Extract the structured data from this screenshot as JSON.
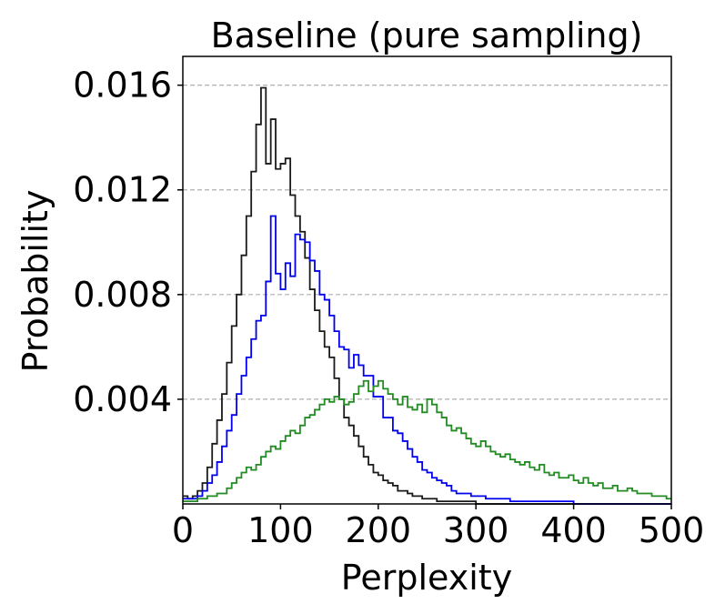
{
  "chart_data": {
    "type": "step-histogram",
    "title": "Baseline (pure sampling)",
    "xlabel": "Perplexity",
    "ylabel": "Probability",
    "xlim": [
      0,
      500
    ],
    "ylim": [
      0,
      0.0171
    ],
    "xticks": [
      0,
      100,
      200,
      300,
      400,
      500
    ],
    "xtick_labels": [
      "0",
      "100",
      "200",
      "300",
      "400",
      "500"
    ],
    "yticks": [
      0.004,
      0.008,
      0.012,
      0.016
    ],
    "ytick_labels": [
      "0.004",
      "0.008",
      "0.012",
      "0.016"
    ],
    "grid": "y-dashed",
    "bin_width": 5,
    "series": [
      {
        "color": "#1a1a1a",
        "values": [
          0.0003,
          0.0002,
          0.0003,
          0.0005,
          0.0008,
          0.0014,
          0.0023,
          0.0032,
          0.0042,
          0.0054,
          0.0068,
          0.008,
          0.0095,
          0.011,
          0.0127,
          0.0145,
          0.0159,
          0.013,
          0.0147,
          0.0128,
          0.013,
          0.0132,
          0.0118,
          0.011,
          0.0104,
          0.0094,
          0.0082,
          0.0074,
          0.0066,
          0.006,
          0.0056,
          0.0048,
          0.004,
          0.0033,
          0.003,
          0.0026,
          0.0022,
          0.0018,
          0.0015,
          0.0012,
          0.0011,
          0.0009,
          0.0008,
          0.0007,
          0.0005,
          0.0005,
          0.0004,
          0.0003,
          0.0003,
          0.0002,
          0.0002,
          0.0002,
          0.0001,
          0.0001,
          0.0001,
          0.0001,
          0.0001,
          0.0001,
          0.0001,
          0.0001,
          0.0,
          0.0,
          0.0,
          0.0,
          0.0,
          0.0,
          0.0,
          0.0,
          0.0,
          0.0,
          0.0,
          0.0,
          0.0,
          0.0,
          0.0,
          0.0,
          0.0,
          0.0,
          0.0,
          0.0,
          0.0,
          0.0,
          0.0,
          0.0,
          0.0,
          0.0,
          0.0,
          0.0,
          0.0,
          0.0,
          0.0,
          0.0,
          0.0,
          0.0,
          0.0,
          0.0,
          0.0,
          0.0,
          0.0,
          0.0
        ]
      },
      {
        "color": "#0000ee",
        "values": [
          0.0002,
          0.0002,
          0.0002,
          0.0003,
          0.0005,
          0.0008,
          0.0011,
          0.0016,
          0.0022,
          0.0028,
          0.0034,
          0.0042,
          0.0049,
          0.0056,
          0.0063,
          0.007,
          0.0072,
          0.0085,
          0.011,
          0.0088,
          0.0082,
          0.0092,
          0.0087,
          0.0103,
          0.0101,
          0.01,
          0.0093,
          0.0089,
          0.008,
          0.0078,
          0.0072,
          0.0066,
          0.006,
          0.0059,
          0.0052,
          0.0057,
          0.0053,
          0.0049,
          0.0049,
          0.0041,
          0.0041,
          0.0033,
          0.0033,
          0.0028,
          0.0027,
          0.0024,
          0.0021,
          0.0018,
          0.0016,
          0.0013,
          0.0012,
          0.001,
          0.0009,
          0.0008,
          0.0007,
          0.0005,
          0.0004,
          0.0004,
          0.0004,
          0.0003,
          0.0003,
          0.0003,
          0.0002,
          0.0002,
          0.0002,
          0.0002,
          0.0002,
          0.0001,
          0.0001,
          0.0001,
          0.0001,
          0.0001,
          0.0001,
          0.0001,
          0.0001,
          0.0001,
          0.0001,
          0.0001,
          0.0001,
          0.0001,
          0.0,
          0.0,
          0.0,
          0.0,
          0.0,
          0.0,
          0.0,
          0.0,
          0.0,
          0.0,
          0.0,
          0.0,
          0.0,
          0.0,
          0.0,
          0.0,
          0.0,
          0.0,
          0.0,
          0.0
        ]
      },
      {
        "color": "#228b22",
        "values": [
          0.0001,
          0.0001,
          0.0001,
          0.0002,
          0.0002,
          0.0003,
          0.0003,
          0.0004,
          0.0004,
          0.0006,
          0.0008,
          0.001,
          0.0012,
          0.0014,
          0.0013,
          0.0015,
          0.0018,
          0.002,
          0.0022,
          0.0021,
          0.0024,
          0.0026,
          0.0028,
          0.0027,
          0.003,
          0.0033,
          0.0034,
          0.0036,
          0.0038,
          0.004,
          0.0039,
          0.0041,
          0.004,
          0.0038,
          0.0039,
          0.0042,
          0.0045,
          0.0047,
          0.0043,
          0.0045,
          0.0047,
          0.0044,
          0.0042,
          0.004,
          0.0038,
          0.0041,
          0.0037,
          0.0036,
          0.0038,
          0.0035,
          0.004,
          0.0038,
          0.0035,
          0.0033,
          0.003,
          0.0028,
          0.0029,
          0.0027,
          0.0025,
          0.0023,
          0.0022,
          0.0024,
          0.0022,
          0.002,
          0.0019,
          0.0018,
          0.0019,
          0.0017,
          0.0016,
          0.0015,
          0.0016,
          0.0014,
          0.0013,
          0.0015,
          0.0012,
          0.0011,
          0.0012,
          0.001,
          0.001,
          0.0011,
          0.0009,
          0.0008,
          0.001,
          0.0008,
          0.0007,
          0.0008,
          0.0006,
          0.0006,
          0.0007,
          0.0005,
          0.0005,
          0.0006,
          0.0005,
          0.0004,
          0.0004,
          0.0004,
          0.0003,
          0.0003,
          0.0003,
          0.0002
        ]
      }
    ]
  }
}
